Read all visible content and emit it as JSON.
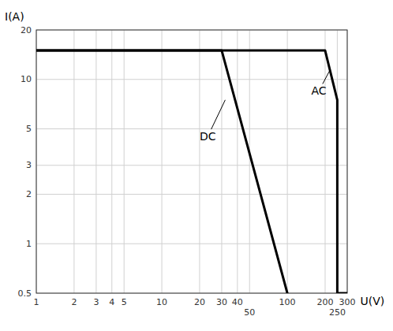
{
  "chart_data": {
    "type": "line",
    "xlabel": "U(V)",
    "ylabel": "I(A)",
    "log": true,
    "grid": true,
    "xlim": [
      1,
      300
    ],
    "ylim": [
      0.5,
      20
    ],
    "xticks": [
      1,
      2,
      3,
      4,
      5,
      10,
      20,
      30,
      40,
      50,
      100,
      200,
      250,
      300
    ],
    "yticks": [
      0.5,
      1,
      2,
      3,
      5,
      10,
      20
    ],
    "series": [
      {
        "color": "#000000",
        "x": [
          1,
          30,
          100
        ],
        "values": [
          15,
          15,
          0.5
        ]
      },
      {
        "color": "#000000",
        "x": [
          1,
          200,
          250,
          250,
          300
        ],
        "values": [
          15,
          15,
          7.5,
          0.5,
          0.5
        ]
      }
    ],
    "annotations": [
      {
        "text": "DC",
        "x": 20,
        "y": 4.5,
        "target_x": 32,
        "target_y": 7.5
      },
      {
        "text": "AC",
        "x": 155,
        "y": 8.5,
        "target_x": 220,
        "target_y": 11.5
      }
    ]
  }
}
